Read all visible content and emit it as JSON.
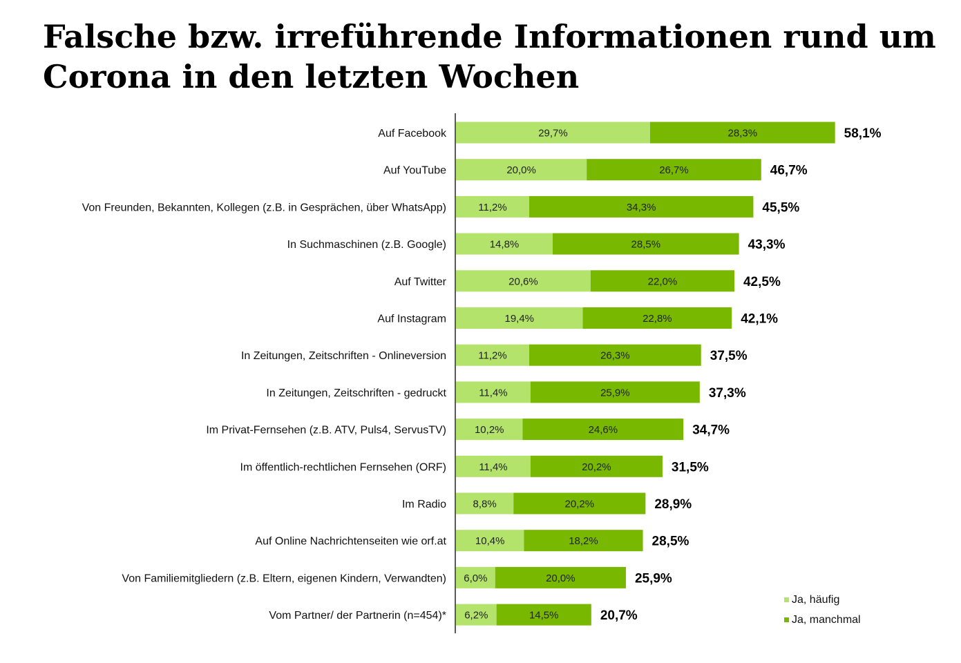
{
  "chart_data": {
    "type": "bar",
    "orientation": "horizontal",
    "stacked": true,
    "title": "Falsche bzw. irreführende Informationen rund um Corona in den letzten Wochen",
    "categories": [
      "Auf Facebook",
      "Auf YouTube",
      "Von Freunden, Bekannten, Kollegen (z.B. in Gesprächen, über WhatsApp)",
      "In Suchmaschinen (z.B. Google)",
      "Auf Twitter",
      "Auf Instagram",
      "In Zeitungen, Zeitschriften - Onlineversion",
      "In Zeitungen, Zeitschriften - gedruckt",
      "Im Privat-Fernsehen (z.B. ATV, Puls4, ServusTV)",
      "Im öffentlich-rechtlichen Fernsehen (ORF)",
      "Im Radio",
      "Auf Online Nachrichtenseiten wie orf.at",
      "Von Familiemitgliedern (z.B. Eltern, eigenen Kindern, Verwandten)",
      "Vom Partner/ der Partnerin (n=454)*"
    ],
    "series": [
      {
        "name": "Ja, häufig",
        "color": "#b3e36b",
        "values": [
          29.7,
          20.0,
          11.2,
          14.8,
          20.6,
          19.4,
          11.2,
          11.4,
          10.2,
          11.4,
          8.8,
          10.4,
          6.0,
          6.2
        ],
        "labels": [
          "29,7%",
          "20,0%",
          "11,2%",
          "14,8%",
          "20,6%",
          "19,4%",
          "11,2%",
          "11,4%",
          "10,2%",
          "11,4%",
          "8,8%",
          "10,4%",
          "6,0%",
          "6,2%"
        ]
      },
      {
        "name": "Ja, manchmal",
        "color": "#78b800",
        "values": [
          28.3,
          26.7,
          34.3,
          28.5,
          22.0,
          22.8,
          26.3,
          25.9,
          24.6,
          20.2,
          20.2,
          18.2,
          20.0,
          14.5
        ],
        "labels": [
          "28,3%",
          "26,7%",
          "34,3%",
          "28,5%",
          "22,0%",
          "22,8%",
          "26,3%",
          "25,9%",
          "24,6%",
          "20,2%",
          "20,2%",
          "18,2%",
          "20,0%",
          "14,5%"
        ]
      }
    ],
    "totals": [
      58.1,
      46.7,
      45.5,
      43.3,
      42.5,
      42.1,
      37.5,
      37.3,
      34.7,
      31.5,
      28.9,
      28.5,
      25.9,
      20.7
    ],
    "total_labels": [
      "58,1%",
      "46,7%",
      "45,5%",
      "43,3%",
      "42,5%",
      "42,1%",
      "37,5%",
      "37,3%",
      "34,7%",
      "31,5%",
      "28,9%",
      "28,5%",
      "25,9%",
      "20,7%"
    ],
    "xlabel": "",
    "ylabel": "",
    "xlim": [
      0,
      65
    ],
    "grid": false,
    "legend": "bottom-right"
  }
}
